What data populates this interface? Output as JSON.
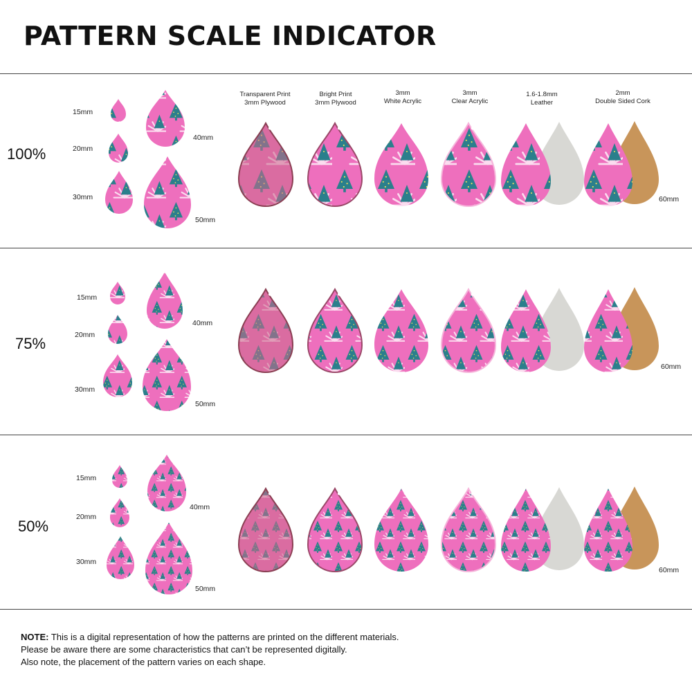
{
  "title": "PATTERN SCALE INDICATOR",
  "materials": [
    {
      "line1": "Transparent Print",
      "line2": "3mm Plywood",
      "kind": "plywood-transparent"
    },
    {
      "line1": "Bright Print",
      "line2": "3mm Plywood",
      "kind": "plywood-bright"
    },
    {
      "line1": "3mm",
      "line2": "White Acrylic",
      "kind": "white-acrylic"
    },
    {
      "line1": "3mm",
      "line2": "Clear Acrylic",
      "kind": "clear-acrylic"
    },
    {
      "line1": "1.6-1.8mm",
      "line2": "Leather",
      "kind": "leather"
    },
    {
      "line1": "2mm",
      "line2": "Double Sided Cork",
      "kind": "cork"
    }
  ],
  "sizes": [
    "15mm",
    "20mm",
    "30mm",
    "40mm",
    "50mm"
  ],
  "material_size_label": "60mm",
  "scales": [
    {
      "label": "100%"
    },
    {
      "label": "75%"
    },
    {
      "label": "50%"
    }
  ],
  "note": {
    "bold": "NOTE:",
    "line1": " This is a digital representation of how the patterns are printed on the different materials.",
    "line2": "Please be aware there are some characteristics that can’t be represented digitally.",
    "line3": "Also note, the placement of the pattern varies on each shape."
  },
  "colors": {
    "pink": "#ee6fbd",
    "teal": "#2b7f8c",
    "white_stripe": "#fbdcef",
    "plywood_tint": "#c96a8a",
    "suede": "#d8d8d4",
    "cork": "#c8955a"
  }
}
